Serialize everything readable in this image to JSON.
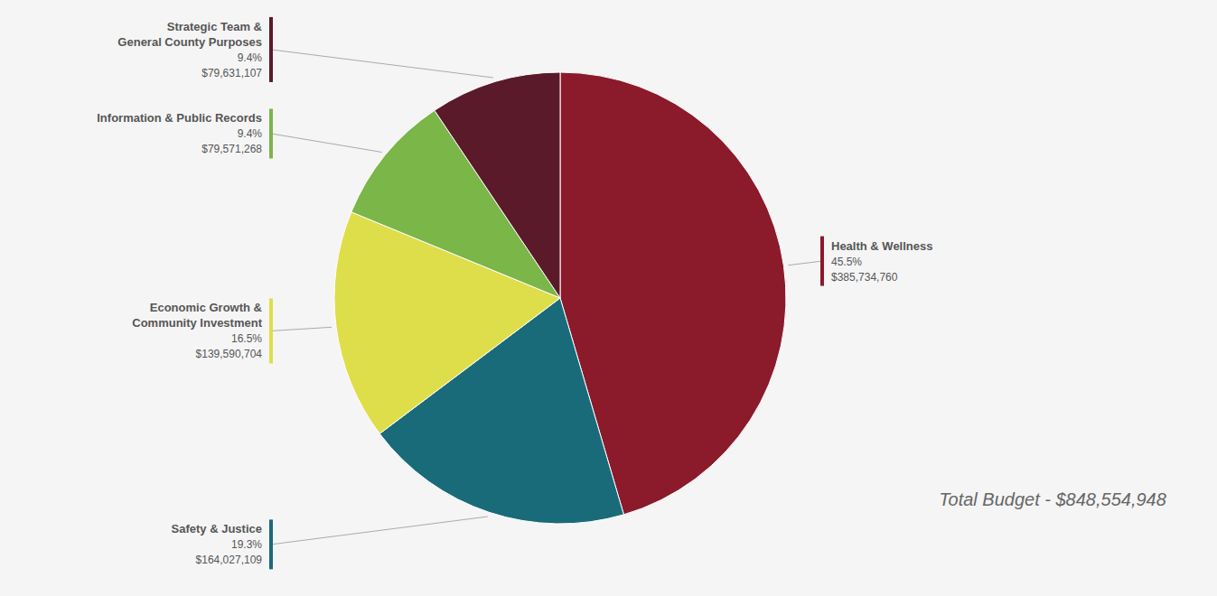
{
  "chart_data": {
    "type": "pie",
    "categories": [
      "Health & Wellness",
      "Safety & Justice",
      "Economic Growth &\nCommunity Investment",
      "Information & Public Records",
      "Strategic Team &\nGeneral County Purposes"
    ],
    "values": [
      45.5,
      19.3,
      16.5,
      9.4,
      9.4
    ],
    "value_labels": [
      "45.5%",
      "19.3%",
      "16.5%",
      "9.4%",
      "9.4%"
    ],
    "amounts": [
      385734760,
      164027109,
      139590704,
      79571268,
      79631107
    ],
    "amount_labels": [
      "$385,734,760",
      "$164,027,109",
      "$139,590,704",
      "$79,571,268",
      "$79,631,107"
    ],
    "colors": [
      "#8B1A2B",
      "#1A6B7A",
      "#DEDE4A",
      "#7AB648",
      "#5B1A2A"
    ],
    "data_labels": true,
    "annotations": [
      "Total Budget - $848,554,948"
    ]
  }
}
